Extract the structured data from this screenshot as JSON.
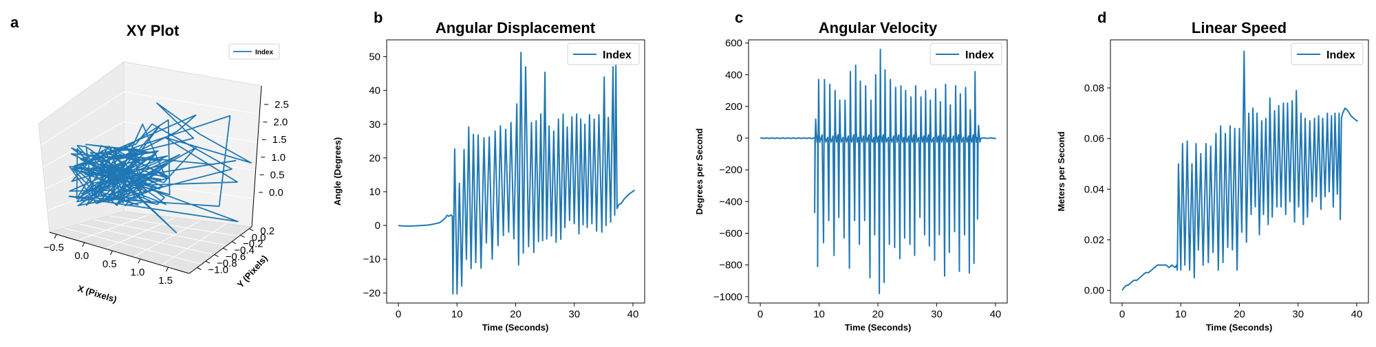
{
  "chart_data": [
    {
      "panel": "a",
      "type": "line",
      "title": "XY Plot",
      "xlabel": "X (Pixels)",
      "ylabel": "Y (Pixels)",
      "zlabel": "",
      "legend": [
        "Index"
      ],
      "legend_position": "top-right",
      "projection": "3d",
      "xticks": [
        "-0.5",
        "0.0",
        "0.5",
        "1.0",
        "1.5"
      ],
      "yticks": [
        "0.2",
        "0.0",
        "-0.2",
        "-0.4",
        "-0.6",
        "-0.8",
        "-1.0"
      ],
      "zticks": [
        "0.0",
        "0.5",
        "1.0",
        "1.5",
        "2.0",
        "2.5"
      ],
      "xlim": [
        -0.6,
        1.6
      ],
      "ylim": [
        -1.0,
        0.2
      ],
      "zlim": [
        0.0,
        2.5
      ],
      "color": "#1f77b4"
    },
    {
      "panel": "b",
      "type": "line",
      "title": "Angular Displacement",
      "xlabel": "Time (Seconds)",
      "ylabel": "Angle (Degrees)",
      "legend": [
        "Index"
      ],
      "legend_position": "top-right",
      "xlim": [
        -2,
        42
      ],
      "ylim": [
        -23,
        55
      ],
      "xticks": [
        0,
        10,
        20,
        30,
        40
      ],
      "yticks": [
        -20,
        -10,
        0,
        10,
        20,
        30,
        40,
        50
      ],
      "color": "#1f77b4",
      "baseline": [
        [
          0,
          0
        ],
        [
          0.5,
          -0.1
        ],
        [
          1,
          -0.2
        ],
        [
          2,
          -0.2
        ],
        [
          3,
          -0.1
        ],
        [
          4,
          0
        ],
        [
          5,
          0.1
        ],
        [
          6,
          0.4
        ],
        [
          7,
          0.8
        ],
        [
          7.5,
          1.4
        ],
        [
          8,
          2.2
        ],
        [
          8.3,
          3
        ],
        [
          8.6,
          2.7
        ],
        [
          9,
          3.1
        ],
        [
          9.2,
          2.7
        ]
      ],
      "peaks": [
        [
          9.6,
          22.7
        ],
        [
          10.4,
          12.5
        ],
        [
          11.2,
          22.5
        ],
        [
          12,
          29.2
        ],
        [
          12.8,
          27
        ],
        [
          13.6,
          26.8
        ],
        [
          14.6,
          26
        ],
        [
          15.5,
          26.2
        ],
        [
          16.5,
          28
        ],
        [
          17.4,
          29.5
        ],
        [
          18.3,
          28.5
        ],
        [
          19.2,
          30.5
        ],
        [
          20.2,
          36
        ],
        [
          20.9,
          51.3
        ],
        [
          21.7,
          47
        ],
        [
          22.7,
          30.5
        ],
        [
          23.5,
          31
        ],
        [
          24.3,
          33
        ],
        [
          25,
          45.4
        ],
        [
          25.7,
          29.5
        ],
        [
          26.5,
          28
        ],
        [
          27.3,
          31.5
        ],
        [
          28.1,
          33
        ],
        [
          28.8,
          29.2
        ],
        [
          29.6,
          32.2
        ],
        [
          30.4,
          33
        ],
        [
          31.1,
          31.5
        ],
        [
          31.8,
          30
        ],
        [
          32.6,
          32.8
        ],
        [
          33.4,
          31.5
        ],
        [
          34.2,
          32.8
        ],
        [
          35.1,
          44
        ],
        [
          35.8,
          32
        ],
        [
          36.6,
          47
        ],
        [
          37.1,
          47.5
        ]
      ],
      "troughs": [
        [
          9.3,
          -20.3
        ],
        [
          10,
          -20.3
        ],
        [
          10.8,
          -18
        ],
        [
          11.6,
          -10
        ],
        [
          12.4,
          -12.8
        ],
        [
          13.2,
          -11
        ],
        [
          14.1,
          -12.7
        ],
        [
          15,
          -5.2
        ],
        [
          16,
          -10
        ],
        [
          17,
          -6
        ],
        [
          17.9,
          -3
        ],
        [
          18.8,
          -2
        ],
        [
          19.7,
          -4
        ],
        [
          20.5,
          -11.7
        ],
        [
          21.3,
          -8.2
        ],
        [
          22.2,
          -6.3
        ],
        [
          23.1,
          -8
        ],
        [
          23.9,
          -4.8
        ],
        [
          24.6,
          -4.5
        ],
        [
          25.3,
          -4
        ],
        [
          26.1,
          -3.1
        ],
        [
          26.9,
          -5
        ],
        [
          27.7,
          -4.1
        ],
        [
          28.4,
          -0.6
        ],
        [
          29.2,
          1.5
        ],
        [
          30,
          0.5
        ],
        [
          30.8,
          -2.5
        ],
        [
          31.5,
          0.2
        ],
        [
          32.2,
          -0.6
        ],
        [
          33,
          0.5
        ],
        [
          33.8,
          -1.7
        ],
        [
          34.7,
          -2
        ],
        [
          35.4,
          0
        ],
        [
          36.2,
          1
        ],
        [
          36.9,
          3
        ],
        [
          37.3,
          5
        ]
      ],
      "tail": [
        [
          37.6,
          6.2
        ],
        [
          38,
          6.5
        ],
        [
          38.5,
          7.8
        ],
        [
          39,
          8.7
        ],
        [
          39.5,
          9.5
        ],
        [
          40,
          10.1
        ],
        [
          40.3,
          10.5
        ]
      ]
    },
    {
      "panel": "c",
      "type": "line",
      "title": "Angular Velocity",
      "xlabel": "Time (Seconds)",
      "ylabel": "Degrees per Second",
      "legend": [
        "Index"
      ],
      "legend_position": "top-right",
      "xlim": [
        -2,
        42
      ],
      "ylim": [
        -1040,
        620
      ],
      "xticks": [
        0,
        10,
        20,
        30,
        40
      ],
      "yticks": [
        -1000,
        -800,
        -600,
        -400,
        -200,
        0,
        200,
        400,
        600
      ],
      "color": "#1f77b4",
      "spikes": [
        [
          9.4,
          -470,
          120
        ],
        [
          9.9,
          -810,
          370
        ],
        [
          10.9,
          -660,
          370
        ],
        [
          11.8,
          -520,
          340
        ],
        [
          12.7,
          -740,
          300
        ],
        [
          13.5,
          -500,
          240
        ],
        [
          14.4,
          -630,
          240
        ],
        [
          15.3,
          -820,
          420
        ],
        [
          16.2,
          -520,
          460
        ],
        [
          17,
          -670,
          360
        ],
        [
          17.9,
          -520,
          330
        ],
        [
          18.8,
          -880,
          240
        ],
        [
          19.6,
          -610,
          400
        ],
        [
          20.4,
          -980,
          560
        ],
        [
          21.2,
          -910,
          430
        ],
        [
          22.1,
          -670,
          370
        ],
        [
          23,
          -690,
          320
        ],
        [
          23.9,
          -760,
          330
        ],
        [
          24.7,
          -630,
          300
        ],
        [
          25.6,
          -670,
          260
        ],
        [
          26.4,
          -740,
          330
        ],
        [
          27.3,
          -500,
          260
        ],
        [
          28.1,
          -610,
          300
        ],
        [
          28.9,
          -680,
          240
        ],
        [
          29.8,
          -770,
          310
        ],
        [
          30.6,
          -610,
          230
        ],
        [
          31.5,
          -870,
          340
        ],
        [
          32.3,
          -720,
          210
        ],
        [
          33.2,
          -590,
          330
        ],
        [
          34,
          -840,
          280
        ],
        [
          34.9,
          -610,
          320
        ],
        [
          35.7,
          -850,
          180
        ],
        [
          36.5,
          -790,
          420
        ],
        [
          37.1,
          -510,
          80
        ]
      ]
    },
    {
      "panel": "d",
      "type": "line",
      "title": "Linear Speed",
      "xlabel": "Time (Seconds)",
      "ylabel": "Meters per Second",
      "legend": [
        "Index"
      ],
      "legend_position": "top-right",
      "xlim": [
        -2,
        42
      ],
      "ylim": [
        -0.005,
        0.099
      ],
      "xticks": [
        0,
        10,
        20,
        30,
        40
      ],
      "yticks": [
        0.0,
        0.02,
        0.04,
        0.06,
        0.08
      ],
      "ytick_labels": [
        "0.00",
        "0.02",
        "0.04",
        "0.06",
        "0.08"
      ],
      "color": "#1f77b4",
      "baseline": [
        [
          0,
          0
        ],
        [
          0.3,
          0.001
        ],
        [
          0.7,
          0.002
        ],
        [
          1,
          0.002
        ],
        [
          1.5,
          0.003
        ],
        [
          2,
          0.004
        ],
        [
          2.5,
          0.004
        ],
        [
          3,
          0.005
        ],
        [
          3.5,
          0.006
        ],
        [
          4,
          0.007
        ],
        [
          4.5,
          0.007
        ],
        [
          5,
          0.008
        ],
        [
          5.5,
          0.009
        ],
        [
          6,
          0.01
        ],
        [
          6.5,
          0.01
        ],
        [
          7,
          0.01
        ],
        [
          7.5,
          0.01
        ],
        [
          8,
          0.009
        ],
        [
          8.5,
          0.01
        ],
        [
          9,
          0.009
        ],
        [
          9.3,
          0.01
        ]
      ],
      "peaks": [
        [
          9.6,
          0.05
        ],
        [
          10.3,
          0.058
        ],
        [
          11.1,
          0.059
        ],
        [
          11.9,
          0.05
        ],
        [
          12.6,
          0.058
        ],
        [
          13.4,
          0.054
        ],
        [
          14.3,
          0.058
        ],
        [
          15.1,
          0.057
        ],
        [
          16,
          0.062
        ],
        [
          16.8,
          0.065
        ],
        [
          17.6,
          0.062
        ],
        [
          18.4,
          0.065
        ],
        [
          19.2,
          0.064
        ],
        [
          20,
          0.064
        ],
        [
          20.8,
          0.0945
        ],
        [
          21.6,
          0.07
        ],
        [
          22.3,
          0.072
        ],
        [
          23,
          0.07
        ],
        [
          23.8,
          0.067
        ],
        [
          24.5,
          0.068
        ],
        [
          25.2,
          0.076
        ],
        [
          26,
          0.071
        ],
        [
          26.7,
          0.073
        ],
        [
          27.5,
          0.074
        ],
        [
          28.2,
          0.074
        ],
        [
          29,
          0.075
        ],
        [
          29.7,
          0.079
        ],
        [
          30.5,
          0.07
        ],
        [
          31.2,
          0.068
        ],
        [
          32,
          0.067
        ],
        [
          32.8,
          0.068
        ],
        [
          33.5,
          0.069
        ],
        [
          34.2,
          0.068
        ],
        [
          35,
          0.07
        ],
        [
          35.7,
          0.069
        ],
        [
          36.3,
          0.07
        ],
        [
          37,
          0.07
        ],
        [
          37.4,
          0.068
        ]
      ],
      "troughs": [
        [
          9.4,
          0.008
        ],
        [
          10,
          0.008
        ],
        [
          10.7,
          0.01
        ],
        [
          11.5,
          0.008
        ],
        [
          12.3,
          0.005
        ],
        [
          13,
          0.016
        ],
        [
          13.8,
          0.01
        ],
        [
          14.7,
          0.011
        ],
        [
          15.5,
          0.015
        ],
        [
          16.4,
          0.008
        ],
        [
          17.2,
          0.011
        ],
        [
          18,
          0.017
        ],
        [
          18.8,
          0.016
        ],
        [
          19.6,
          0.008
        ],
        [
          20.4,
          0.023
        ],
        [
          21.2,
          0.019
        ],
        [
          22,
          0.03
        ],
        [
          22.7,
          0.033
        ],
        [
          23.4,
          0.022
        ],
        [
          24.1,
          0.03
        ],
        [
          24.9,
          0.026
        ],
        [
          25.6,
          0.029
        ],
        [
          26.4,
          0.033
        ],
        [
          27.1,
          0.033
        ],
        [
          27.9,
          0.03
        ],
        [
          28.6,
          0.035
        ],
        [
          29.4,
          0.027
        ],
        [
          30.1,
          0.033
        ],
        [
          30.9,
          0.026
        ],
        [
          31.6,
          0.029
        ],
        [
          32.4,
          0.035
        ],
        [
          33.1,
          0.037
        ],
        [
          33.9,
          0.032
        ],
        [
          34.6,
          0.037
        ],
        [
          35.3,
          0.039
        ],
        [
          36,
          0.033
        ],
        [
          36.7,
          0.038
        ],
        [
          37.2,
          0.028
        ]
      ],
      "tail": [
        [
          37.6,
          0.07
        ],
        [
          38,
          0.072
        ],
        [
          38.5,
          0.071
        ],
        [
          39,
          0.069
        ],
        [
          39.5,
          0.068
        ],
        [
          40,
          0.067
        ],
        [
          40.2,
          0.067
        ]
      ]
    }
  ]
}
